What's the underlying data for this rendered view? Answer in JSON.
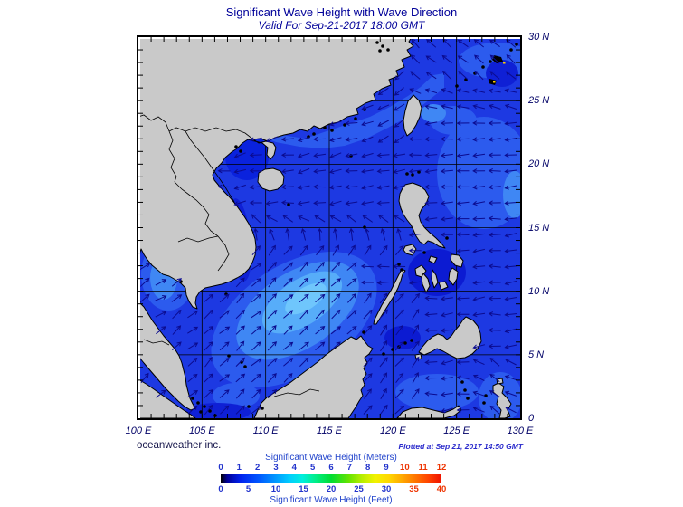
{
  "header": {
    "title": "Significant Wave Height with Wave Direction",
    "subtitle": "Valid For Sep-21-2017 18:00 GMT"
  },
  "map": {
    "lat_labels": [
      "30 N",
      "25 N",
      "20 N",
      "15 N",
      "10 N",
      "5 N",
      "0"
    ],
    "lon_labels": [
      "100 E",
      "105 E",
      "110 E",
      "115 E",
      "120 E",
      "125 E",
      "130 E"
    ]
  },
  "footer": {
    "credit": "oceanweather inc.",
    "plotted": "Plotted at Sep 21, 2017 14:50 GMT"
  },
  "legend": {
    "caption_meters": "Significant Wave Height (Meters)",
    "caption_feet": "Significant Wave Height (Feet)",
    "meters_values": [
      0,
      1,
      2,
      3,
      4,
      5,
      6,
      7,
      8,
      9,
      10,
      11,
      12
    ],
    "meters_red_from": 10,
    "feet_values": [
      0,
      5,
      10,
      15,
      20,
      25,
      30,
      35,
      40
    ],
    "feet_red_from": 35,
    "tick_blue": "#2233cc",
    "tick_red": "#ee3300"
  },
  "colors": {
    "title": "#000099",
    "axis_label": "#000066",
    "land": "#c9c9c9",
    "coast": "#000000",
    "ocean_base": "#1d39e2",
    "ocean_mid": "#2c5bee",
    "ocean_light": "#3f87f4",
    "ocean_xlight": "#57adf9",
    "ocean_core": "#6fc6fc",
    "ocean_dark": "#0f20d5",
    "arrow": "#0b0b8f"
  }
}
